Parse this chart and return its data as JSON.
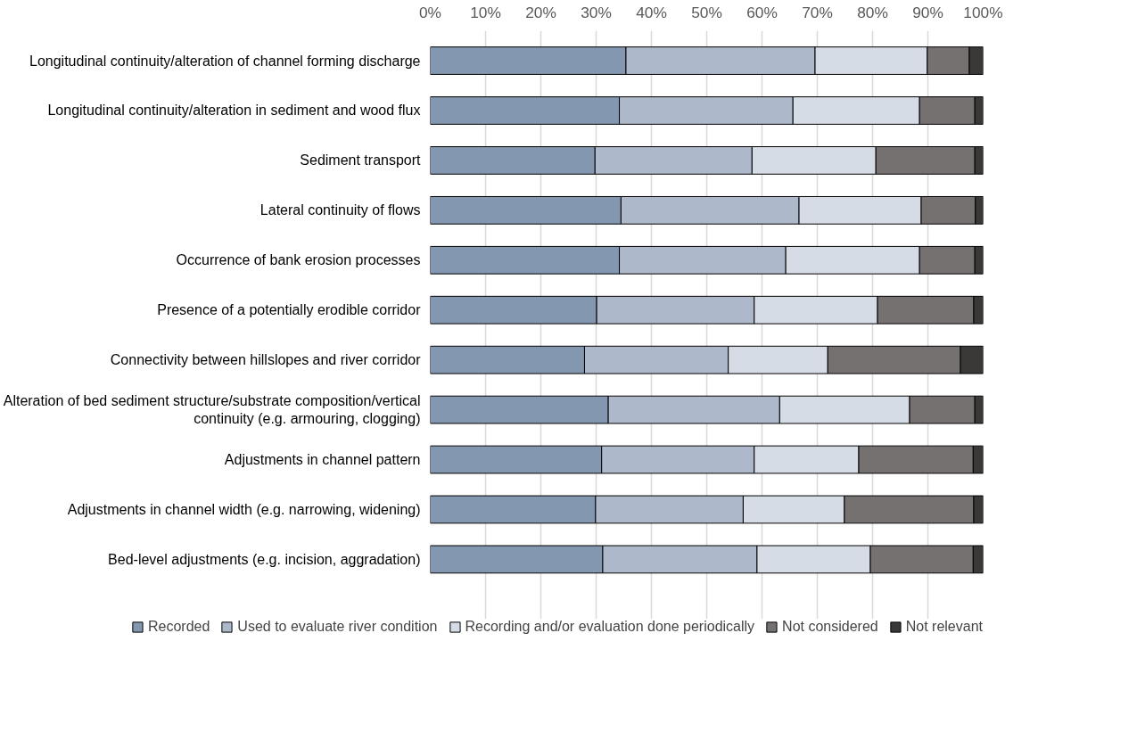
{
  "chart_data": {
    "type": "bar",
    "orientation": "horizontal",
    "stacked": true,
    "categories": [
      "Longitudinal continuity/alteration of channel forming discharge",
      "Longitudinal continuity/alteration in sediment and wood flux",
      "Sediment transport",
      "Lateral continuity of flows",
      "Occurrence of bank erosion processes",
      "Presence of a potentially erodible corridor",
      "Connectivity between hillslopes and river corridor",
      "Alteration of bed sediment structure/substrate composition/vertical continuity (e.g. armouring, clogging)",
      "Adjustments in channel pattern",
      "Adjustments in channel width (e.g. narrowing, widening)",
      "Bed-level adjustments (e.g. incision, aggradation)"
    ],
    "series": [
      {
        "name": "Recorded",
        "color": "#8497b0",
        "values": [
          35.4,
          34.2,
          29.8,
          34.5,
          34.2,
          30.1,
          27.9,
          32.2,
          31.0,
          29.9,
          31.2
        ]
      },
      {
        "name": "Used to evaluate river condition",
        "color": "#adb9ca",
        "values": [
          34.2,
          31.4,
          28.4,
          32.2,
          30.1,
          28.5,
          26.0,
          31.0,
          27.6,
          26.7,
          27.9
        ]
      },
      {
        "name": "Recording and/or evaluation done periodically",
        "color": "#d6dce5",
        "values": [
          20.3,
          22.9,
          22.4,
          22.1,
          24.2,
          22.3,
          18.0,
          23.5,
          18.9,
          18.3,
          20.5
        ]
      },
      {
        "name": "Not considered",
        "color": "#767171",
        "values": [
          7.6,
          10.0,
          17.9,
          9.8,
          10.0,
          17.4,
          24.0,
          11.8,
          20.7,
          23.4,
          18.6
        ]
      },
      {
        "name": "Not relevant",
        "color": "#3b3838",
        "values": [
          2.5,
          1.5,
          1.5,
          1.4,
          1.5,
          1.7,
          4.1,
          1.5,
          1.8,
          1.7,
          1.8
        ]
      }
    ],
    "xlim": [
      0,
      100
    ],
    "xticks": [
      {
        "value": 0,
        "label": "0%"
      },
      {
        "value": 10,
        "label": "10%"
      },
      {
        "value": 20,
        "label": "20%"
      },
      {
        "value": 30,
        "label": "30%"
      },
      {
        "value": 40,
        "label": "40%"
      },
      {
        "value": 50,
        "label": "50%"
      },
      {
        "value": 60,
        "label": "60%"
      },
      {
        "value": 70,
        "label": "70%"
      },
      {
        "value": 80,
        "label": "80%"
      },
      {
        "value": 90,
        "label": "90%"
      },
      {
        "value": 100,
        "label": "100%"
      }
    ],
    "grid": "x",
    "legend": "bottom"
  }
}
